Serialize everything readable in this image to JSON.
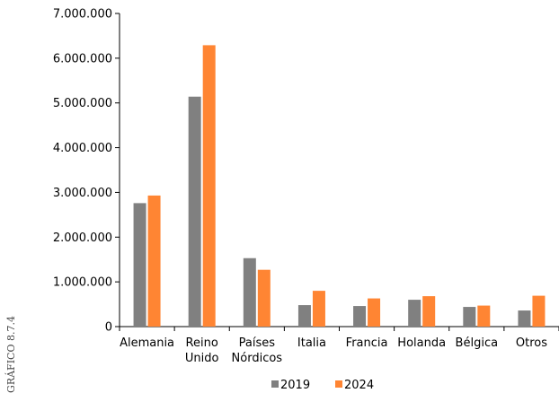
{
  "side_caption": "GRÁFICO 8.7.4",
  "chart_data": {
    "type": "bar",
    "categories": [
      "Alemania",
      "Reino Unido",
      "Países Nórdicos",
      "Italia",
      "Francia",
      "Holanda",
      "Bélgica",
      "Otros"
    ],
    "category_lines": [
      [
        "Alemania"
      ],
      [
        "Reino",
        "Unido"
      ],
      [
        "Países",
        "Nórdicos"
      ],
      [
        "Italia"
      ],
      [
        "Francia"
      ],
      [
        "Holanda"
      ],
      [
        "Bélgica"
      ],
      [
        "Otros"
      ]
    ],
    "series": [
      {
        "name": "2019",
        "color": "#808080",
        "values": [
          2760000,
          5140000,
          1530000,
          480000,
          460000,
          600000,
          440000,
          360000
        ]
      },
      {
        "name": "2024",
        "color": "#ff8533",
        "values": [
          2930000,
          6290000,
          1270000,
          800000,
          630000,
          680000,
          470000,
          690000
        ]
      }
    ],
    "ylim": [
      0,
      7000000
    ],
    "yticks": [
      0,
      1000000,
      2000000,
      3000000,
      4000000,
      5000000,
      6000000,
      7000000
    ],
    "ytick_labels": [
      "0",
      "1.000.000",
      "2.000.000",
      "3.000.000",
      "4.000.000",
      "5.000.000",
      "6.000.000",
      "7.000.000"
    ],
    "grid": false,
    "legend_position": "bottom-center",
    "title": "",
    "xlabel": "",
    "ylabel": ""
  }
}
